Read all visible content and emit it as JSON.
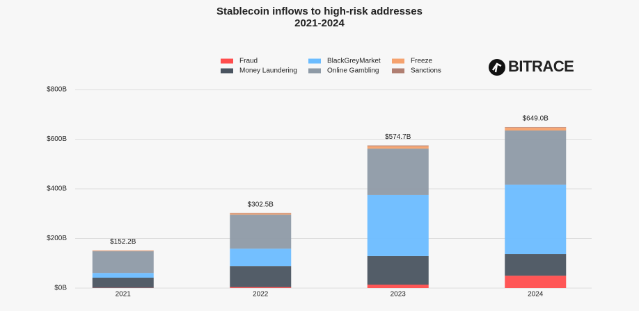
{
  "chart_data": {
    "type": "stacked_bar",
    "title": "Stablecoin inflows to high-risk addresses",
    "subtitle": "2021-2024",
    "logo": "BITRACE",
    "categories": [
      "2021",
      "2022",
      "2023",
      "2024"
    ],
    "series": [
      {
        "name": "Fraud",
        "color": "#ff4d4d",
        "values": [
          1,
          4,
          14,
          50
        ]
      },
      {
        "name": "Money Laundering",
        "color": "#4a5460",
        "values": [
          41,
          85,
          115,
          87
        ]
      },
      {
        "name": "BlackGreyMarket",
        "color": "#6bbcff",
        "values": [
          19,
          70,
          246,
          280
        ]
      },
      {
        "name": "Online Gambling",
        "color": "#8e9aa6",
        "values": [
          88,
          137,
          187,
          218
        ]
      },
      {
        "name": "Freeze",
        "color": "#f5a26e",
        "values": [
          2.7,
          5,
          10,
          12
        ]
      },
      {
        "name": "Sanctions",
        "color": "#b07f72",
        "values": [
          0.5,
          1.5,
          2.7,
          2
        ]
      }
    ],
    "totals": {
      "values": [
        152.2,
        302.5,
        574.7,
        649.0
      ],
      "value_labels": [
        "$152.2B",
        "$302.5B",
        "$574.7B",
        "$649.0B"
      ]
    },
    "ylim": [
      0,
      800
    ],
    "yticks": [
      {
        "value": 0,
        "label": "$0B"
      },
      {
        "value": 200,
        "label": "$200B"
      },
      {
        "value": 400,
        "label": "$400B"
      },
      {
        "value": 600,
        "label": "$600B"
      },
      {
        "value": 800,
        "label": "$800B"
      }
    ],
    "grid": true
  }
}
